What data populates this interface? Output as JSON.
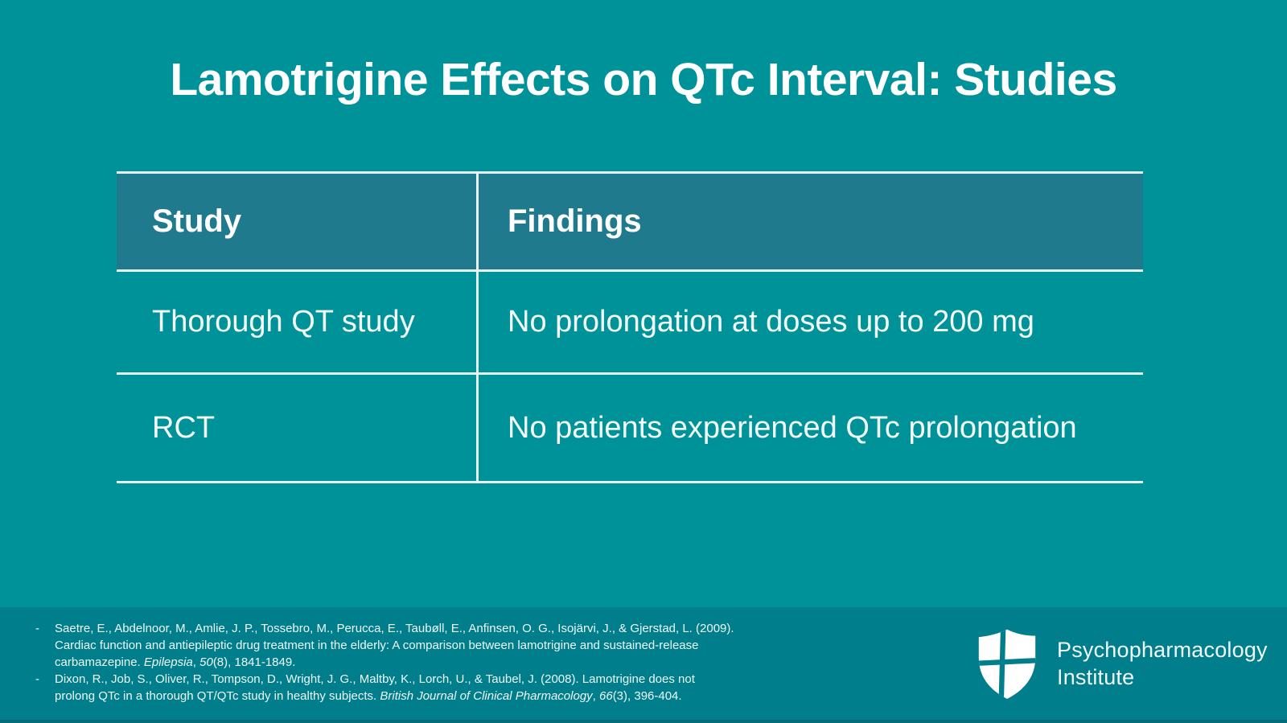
{
  "slide": {
    "title": "Lamotrigine Effects on QTc Interval: Studies"
  },
  "table": {
    "columns": [
      "Study",
      "Findings"
    ],
    "rows": [
      [
        "Thorough QT study",
        "No prolongation at doses up to 200 mg"
      ],
      [
        "RCT",
        "No patients experienced QTc prolongation"
      ]
    ]
  },
  "references": [
    {
      "segments": [
        {
          "text": "Saetre, E., Abdelnoor, M., Amlie, J. P., Tossebro, M., Perucca, E., Taubøll, E., Anfinsen, O. G., Isojärvi, J., & Gjerstad, L. (2009). Cardiac function and antiepileptic drug treatment in the elderly: A comparison between lamotrigine and sustained-release carbamazepine. ",
          "italic": false
        },
        {
          "text": "Epilepsia",
          "italic": true
        },
        {
          "text": ", ",
          "italic": false
        },
        {
          "text": "50",
          "italic": true
        },
        {
          "text": "(8), 1841-1849.",
          "italic": false
        }
      ]
    },
    {
      "segments": [
        {
          "text": "Dixon, R., Job, S., Oliver, R., Tompson, D., Wright, J. G., Maltby, K., Lorch, U., & Taubel, J. (2008). Lamotrigine does not prolong QTc in a thorough QT/QTc study in healthy subjects. ",
          "italic": false
        },
        {
          "text": "British Journal of Clinical Pharmacology",
          "italic": true
        },
        {
          "text": ", ",
          "italic": false
        },
        {
          "text": "66",
          "italic": true
        },
        {
          "text": "(3), 396-404.",
          "italic": false
        }
      ]
    }
  ],
  "footer": {
    "bullet": "-",
    "logo": {
      "icon": "shield-cross-icon",
      "line1": "Psychopharmacology",
      "line2": "Institute"
    }
  },
  "colors": {
    "background": "#009299",
    "table_header_bg": "#1e7a8c",
    "footer_band": "#007e8c",
    "table_border": "#e8f4f4",
    "text": "#ffffff"
  }
}
